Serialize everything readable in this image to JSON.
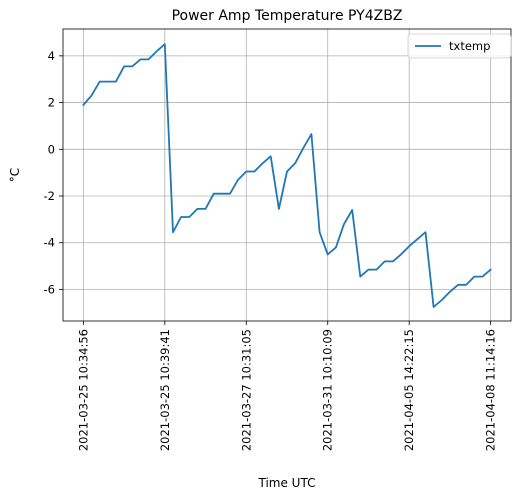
{
  "chart_data": {
    "type": "line",
    "title": "Power Amp Temperature PY4ZBZ",
    "xlabel": "Time UTC",
    "ylabel": "°C",
    "x_tick_labels": [
      "2021-03-25 10:34:56",
      "2021-03-25 10:39:41",
      "2021-03-27 10:31:05",
      "2021-03-31 10:10:09",
      "2021-04-05 14:22:15",
      "2021-04-08 11:14:16"
    ],
    "x_tick_positions": [
      0,
      10,
      20,
      30,
      40,
      50
    ],
    "y_ticks": [
      -6,
      -4,
      -2,
      0,
      2,
      4
    ],
    "xlim": [
      -2.5,
      52.5
    ],
    "ylim": [
      -7.35,
      5.15
    ],
    "grid": true,
    "legend_position": "upper right",
    "series": [
      {
        "name": "txtemp",
        "color": "#1f77b4",
        "x": [
          0,
          1,
          2,
          3,
          4,
          5,
          6,
          7,
          8,
          9,
          10,
          11,
          12,
          13,
          14,
          15,
          16,
          17,
          18,
          19,
          20,
          21,
          22,
          23,
          24,
          25,
          26,
          27,
          28,
          29,
          30,
          31,
          32,
          33,
          34,
          35,
          36,
          37,
          38,
          39,
          40,
          41,
          42,
          43,
          44,
          45,
          46,
          47,
          48,
          49,
          50
        ],
        "y": [
          1.9,
          2.3,
          2.9,
          2.9,
          2.9,
          3.55,
          3.55,
          3.85,
          3.85,
          4.2,
          4.5,
          -3.55,
          -2.9,
          -2.9,
          -2.55,
          -2.55,
          -1.9,
          -1.9,
          -1.9,
          -1.3,
          -0.95,
          -0.95,
          -0.6,
          -0.3,
          -2.55,
          -0.95,
          -0.6,
          0.05,
          0.65,
          -3.55,
          -4.5,
          -4.2,
          -3.2,
          -2.6,
          -5.45,
          -5.15,
          -5.15,
          -4.8,
          -4.8,
          -4.5,
          -4.15,
          -3.85,
          -3.55,
          -6.75,
          -6.45,
          -6.1,
          -5.8,
          -5.8,
          -5.45,
          -5.45,
          -5.15
        ]
      }
    ]
  }
}
